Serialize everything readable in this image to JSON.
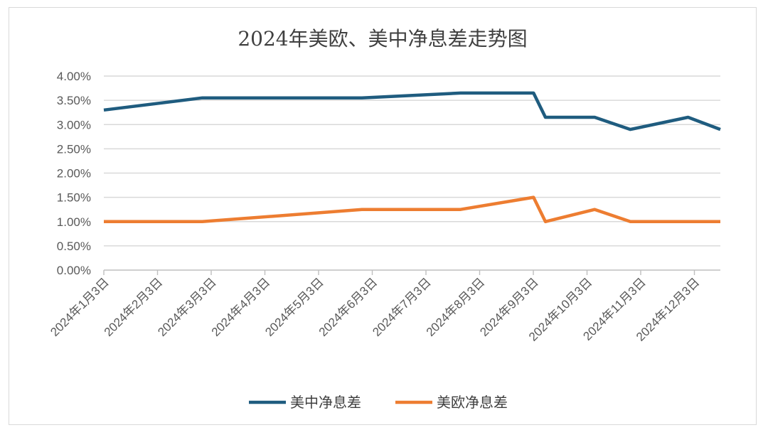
{
  "chart_data": {
    "type": "line",
    "title": "2024年美欧、美中净息差走势图",
    "xlabel": "",
    "ylabel": "",
    "ylim": [
      0,
      0.04
    ],
    "y_ticks": [
      "0.00%",
      "0.50%",
      "1.00%",
      "1.50%",
      "2.00%",
      "2.50%",
      "3.00%",
      "3.50%",
      "4.00%"
    ],
    "categories": [
      "2024年1月3日",
      "2024年2月3日",
      "2024年3月3日",
      "2024年4月3日",
      "2024年5月3日",
      "2024年6月3日",
      "2024年7月3日",
      "2024年8月3日",
      "2024年9月3日",
      "2024年10月3日",
      "2024年11月3日",
      "2024年12月3日"
    ],
    "x_domain": [
      "2024-01-03",
      "2024-12-31"
    ],
    "grid": true,
    "legend_position": "bottom",
    "series": [
      {
        "name": "美中净息差",
        "color": "#1f5c7f",
        "points": [
          {
            "x": "2024-01-03",
            "y": 0.033
          },
          {
            "x": "2024-03-01",
            "y": 0.0355
          },
          {
            "x": "2024-06-03",
            "y": 0.0355
          },
          {
            "x": "2024-07-31",
            "y": 0.0365
          },
          {
            "x": "2024-09-12",
            "y": 0.0365
          },
          {
            "x": "2024-09-19",
            "y": 0.0315
          },
          {
            "x": "2024-10-18",
            "y": 0.0315
          },
          {
            "x": "2024-11-08",
            "y": 0.029
          },
          {
            "x": "2024-12-12",
            "y": 0.0315
          },
          {
            "x": "2024-12-31",
            "y": 0.029
          }
        ]
      },
      {
        "name": "美欧净息差",
        "color": "#ed7d31",
        "points": [
          {
            "x": "2024-01-03",
            "y": 0.01
          },
          {
            "x": "2024-03-01",
            "y": 0.01
          },
          {
            "x": "2024-06-03",
            "y": 0.0125
          },
          {
            "x": "2024-07-31",
            "y": 0.0125
          },
          {
            "x": "2024-09-12",
            "y": 0.015
          },
          {
            "x": "2024-09-19",
            "y": 0.01
          },
          {
            "x": "2024-10-18",
            "y": 0.0125
          },
          {
            "x": "2024-11-08",
            "y": 0.01
          },
          {
            "x": "2024-12-31",
            "y": 0.01
          }
        ]
      }
    ]
  }
}
